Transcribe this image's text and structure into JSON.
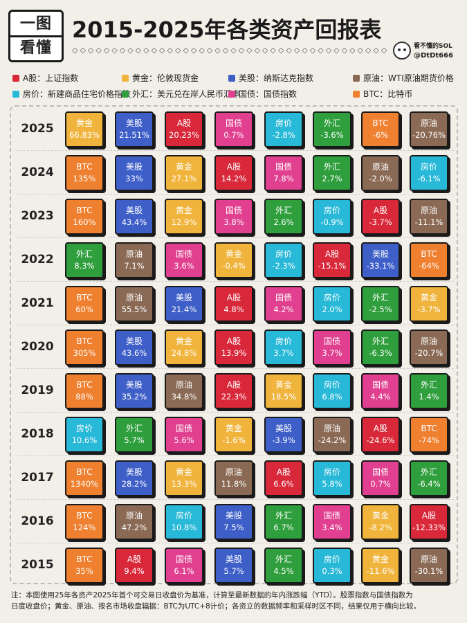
{
  "header": {
    "badge_line1": "一图",
    "badge_line2": "看懂",
    "title": "2015-2025年各类资产回报表",
    "author_line1": "看不懂的SOL",
    "author_line2": "@DtDt666"
  },
  "colors": {
    "A股": "#d8283a",
    "黄金": "#f0b43c",
    "美股": "#3f5fc8",
    "原油": "#8a6a55",
    "房价": "#28b8d8",
    "外汇": "#2f9e3c",
    "国债": "#e0408f",
    "BTC": "#ee8030"
  },
  "legend": [
    {
      "key": "A股",
      "label": "A股：上证指数"
    },
    {
      "key": "黄金",
      "label": "黄金：伦敦现货金"
    },
    {
      "key": "美股",
      "label": "美股：纳斯达克指数"
    },
    {
      "key": "原油",
      "label": "原油：WTI原油期货价格"
    },
    {
      "key": "房价",
      "label": "房价：新建商品住宅价格指数"
    },
    {
      "key": "外汇",
      "label": "外汇：美元兑在岸人民币汇率"
    },
    {
      "key": "国债",
      "label": "国债：国债指数"
    },
    {
      "key": "BTC",
      "label": "BTC：比特币"
    }
  ],
  "chart_data": {
    "type": "table",
    "rows": [
      {
        "year": "2025",
        "cells": [
          [
            "黄金",
            "66.83%"
          ],
          [
            "美股",
            "21.51%"
          ],
          [
            "A股",
            "20.23%"
          ],
          [
            "国债",
            "0.7%"
          ],
          [
            "房价",
            "-2.8%"
          ],
          [
            "外汇",
            "-3.6%"
          ],
          [
            "BTC",
            "-6%"
          ],
          [
            "原油",
            "-20.76%"
          ]
        ]
      },
      {
        "year": "2024",
        "cells": [
          [
            "BTC",
            "135%"
          ],
          [
            "美股",
            "33%"
          ],
          [
            "黄金",
            "27.1%"
          ],
          [
            "A股",
            "14.2%"
          ],
          [
            "国债",
            "7.8%"
          ],
          [
            "外汇",
            "2.7%"
          ],
          [
            "原油",
            "-2.0%"
          ],
          [
            "房价",
            "-6.1%"
          ]
        ]
      },
      {
        "year": "2023",
        "cells": [
          [
            "BTC",
            "160%"
          ],
          [
            "美股",
            "43.4%"
          ],
          [
            "黄金",
            "12.9%"
          ],
          [
            "国债",
            "3.8%"
          ],
          [
            "外汇",
            "2.6%"
          ],
          [
            "房价",
            "-0.9%"
          ],
          [
            "A股",
            "-3.7%"
          ],
          [
            "原油",
            "-11.1%"
          ]
        ]
      },
      {
        "year": "2022",
        "cells": [
          [
            "外汇",
            "8.3%"
          ],
          [
            "原油",
            "7.1%"
          ],
          [
            "国债",
            "3.6%"
          ],
          [
            "黄金",
            "-0.4%"
          ],
          [
            "房价",
            "-2.3%"
          ],
          [
            "A股",
            "-15.1%"
          ],
          [
            "美股",
            "-33.1%"
          ],
          [
            "BTC",
            "-64%"
          ]
        ]
      },
      {
        "year": "2021",
        "cells": [
          [
            "BTC",
            "60%"
          ],
          [
            "原油",
            "55.5%"
          ],
          [
            "美股",
            "21.4%"
          ],
          [
            "A股",
            "4.8%"
          ],
          [
            "国债",
            "4.2%"
          ],
          [
            "房价",
            "2.0%"
          ],
          [
            "外汇",
            "-2.5%"
          ],
          [
            "黄金",
            "-3.7%"
          ]
        ]
      },
      {
        "year": "2020",
        "cells": [
          [
            "BTC",
            "305%"
          ],
          [
            "美股",
            "43.6%"
          ],
          [
            "黄金",
            "24.8%"
          ],
          [
            "A股",
            "13.9%"
          ],
          [
            "房价",
            "3.7%"
          ],
          [
            "国债",
            "3.7%"
          ],
          [
            "外汇",
            "-6.3%"
          ],
          [
            "原油",
            "-20.7%"
          ]
        ]
      },
      {
        "year": "2019",
        "cells": [
          [
            "BTC",
            "88%"
          ],
          [
            "美股",
            "35.2%"
          ],
          [
            "原油",
            "34.8%"
          ],
          [
            "A股",
            "22.3%"
          ],
          [
            "黄金",
            "18.5%"
          ],
          [
            "房价",
            "6.8%"
          ],
          [
            "国债",
            "4.4%"
          ],
          [
            "外汇",
            "1.4%"
          ]
        ]
      },
      {
        "year": "2018",
        "cells": [
          [
            "房价",
            "10.6%"
          ],
          [
            "外汇",
            "5.7%"
          ],
          [
            "国债",
            "5.6%"
          ],
          [
            "黄金",
            "-1.6%"
          ],
          [
            "美股",
            "-3.9%"
          ],
          [
            "原油",
            "-24.2%"
          ],
          [
            "A股",
            "-24.6%"
          ],
          [
            "BTC",
            "-74%"
          ]
        ]
      },
      {
        "year": "2017",
        "cells": [
          [
            "BTC",
            "1340%"
          ],
          [
            "美股",
            "28.2%"
          ],
          [
            "黄金",
            "13.3%"
          ],
          [
            "原油",
            "11.8%"
          ],
          [
            "A股",
            "6.6%"
          ],
          [
            "房价",
            "5.8%"
          ],
          [
            "国债",
            "0.7%"
          ],
          [
            "外汇",
            "-6.4%"
          ]
        ]
      },
      {
        "year": "2016",
        "cells": [
          [
            "BTC",
            "124%"
          ],
          [
            "原油",
            "47.2%"
          ],
          [
            "房价",
            "10.8%"
          ],
          [
            "美股",
            "7.5%"
          ],
          [
            "外汇",
            "6.7%"
          ],
          [
            "国债",
            "3.4%"
          ],
          [
            "黄金",
            "-8.2%"
          ],
          [
            "A股",
            "-12.33%"
          ]
        ]
      },
      {
        "year": "2015",
        "cells": [
          [
            "BTC",
            "35%"
          ],
          [
            "A股",
            "9.4%"
          ],
          [
            "国债",
            "6.1%"
          ],
          [
            "美股",
            "5.7%"
          ],
          [
            "外汇",
            "4.5%"
          ],
          [
            "房价",
            "0.3%"
          ],
          [
            "黄金",
            "-11.6%"
          ],
          [
            "原油",
            "-30.1%"
          ]
        ]
      }
    ]
  },
  "note": {
    "line1": "注：本图使用25年各资产2025年首个可交易日收盘价为基准，计算至最新数据的年内涨跌幅（YTD）。股票指数与国债指数为",
    "line2": "日度收盘价；黄金、原油、按名市场收盘辐据：BTC为UTC+8计价；各资立的数据频率和采样时区不同，结果仅用于横向比较。"
  }
}
